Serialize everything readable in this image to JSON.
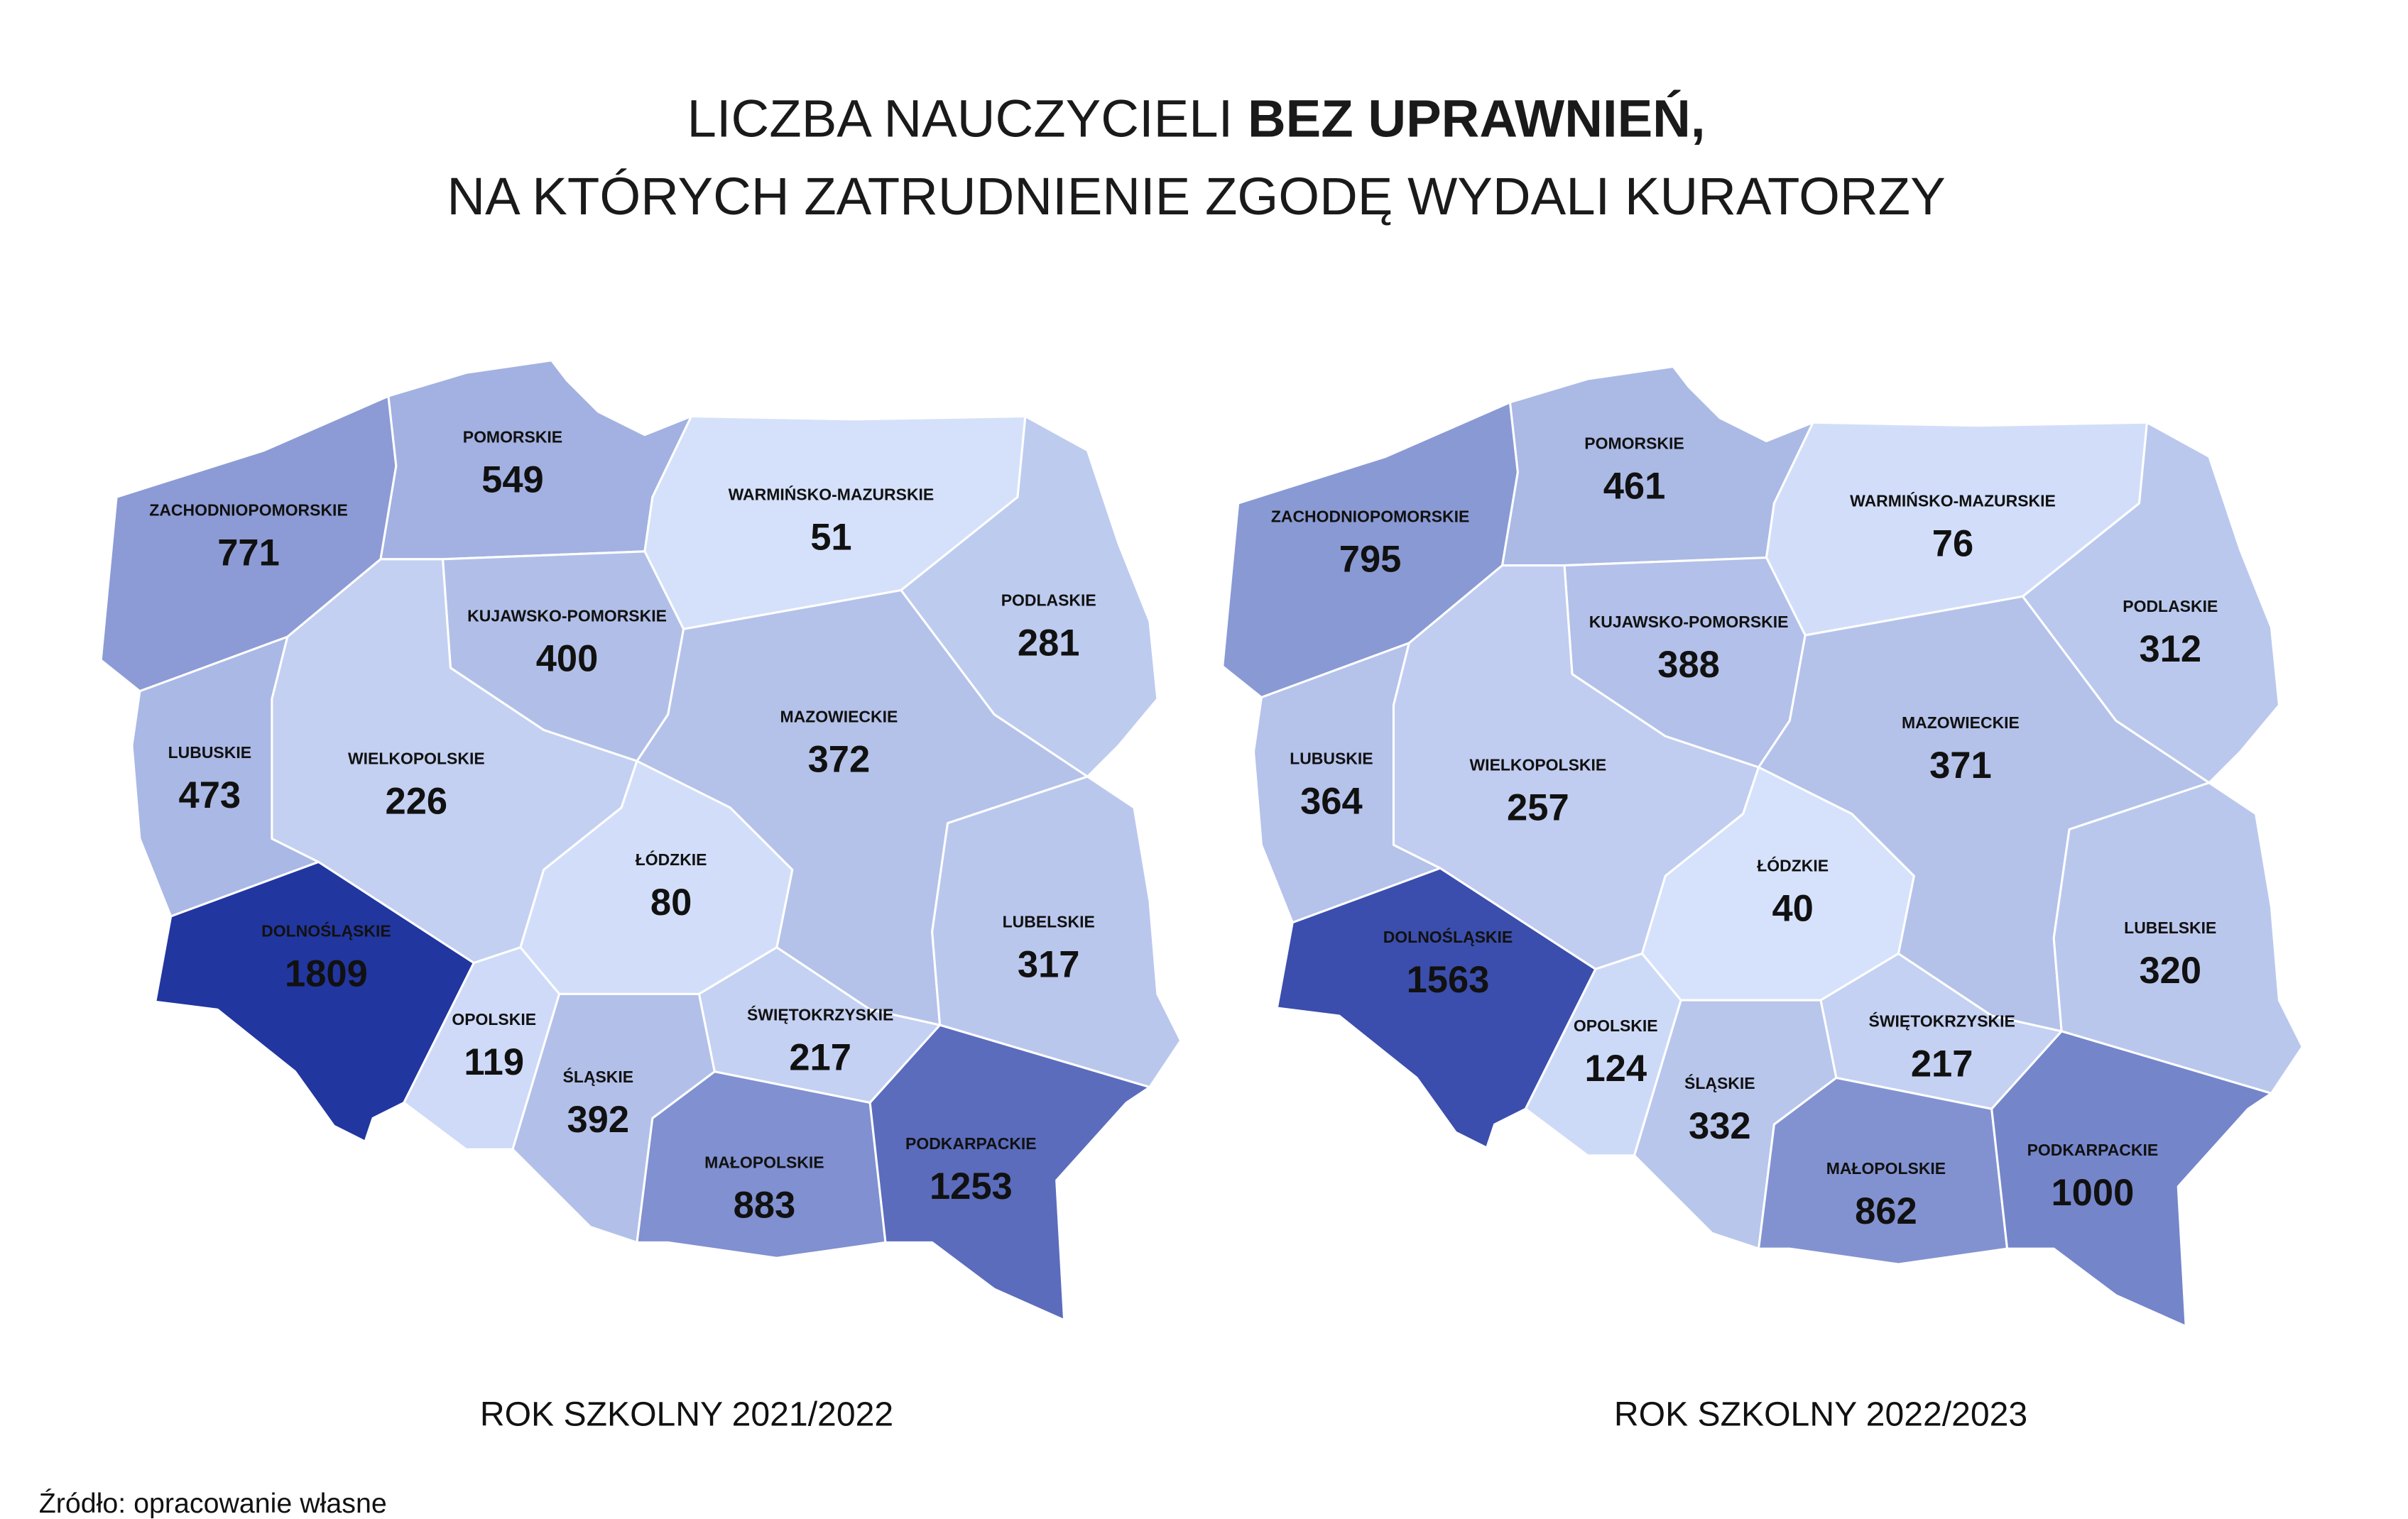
{
  "title": {
    "line1_light": "LICZBA NAUCZYCIELI",
    "line1_bold": "BEZ UPRAWNIEŃ,",
    "line2": "NA KTÓRYCH ZATRUDNIENIE ZGODĘ WYDALI KURATORZY"
  },
  "color_scale": {
    "low": "#d6e2fb",
    "high": "#2236a0"
  },
  "maps": [
    {
      "caption": "ROK SZKOLNY 2021/2022",
      "regions": [
        {
          "name": "ZACHODNIOPOMORSKIE",
          "value": 771
        },
        {
          "name": "POMORSKIE",
          "value": 549
        },
        {
          "name": "WARMIŃSKO-MAZURSKIE",
          "value": 51
        },
        {
          "name": "PODLASKIE",
          "value": 281
        },
        {
          "name": "KUJAWSKO-POMORSKIE",
          "value": 400
        },
        {
          "name": "MAZOWIECKIE",
          "value": 372
        },
        {
          "name": "WIELKOPOLSKIE",
          "value": 226
        },
        {
          "name": "LUBUSKIE",
          "value": 473
        },
        {
          "name": "ŁÓDZKIE",
          "value": 80
        },
        {
          "name": "DOLNOŚLĄSKIE",
          "value": 1809
        },
        {
          "name": "LUBELSKIE",
          "value": 317
        },
        {
          "name": "OPOLSKIE",
          "value": 119
        },
        {
          "name": "ŚLĄSKIE",
          "value": 392
        },
        {
          "name": "ŚWIĘTOKRZYSKIE",
          "value": 217
        },
        {
          "name": "MAŁOPOLSKIE",
          "value": 883
        },
        {
          "name": "PODKARPACKIE",
          "value": 1253
        }
      ]
    },
    {
      "caption": "ROK SZKOLNY 2022/2023",
      "regions": [
        {
          "name": "ZACHODNIOPOMORSKIE",
          "value": 795
        },
        {
          "name": "POMORSKIE",
          "value": 461
        },
        {
          "name": "WARMIŃSKO-MAZURSKIE",
          "value": 76
        },
        {
          "name": "PODLASKIE",
          "value": 312
        },
        {
          "name": "KUJAWSKO-POMORSKIE",
          "value": 388
        },
        {
          "name": "MAZOWIECKIE",
          "value": 371
        },
        {
          "name": "WIELKOPOLSKIE",
          "value": 257
        },
        {
          "name": "LUBUSKIE",
          "value": 364
        },
        {
          "name": "ŁÓDZKIE",
          "value": 40
        },
        {
          "name": "DOLNOŚLĄSKIE",
          "value": 1563
        },
        {
          "name": "LUBELSKIE",
          "value": 320
        },
        {
          "name": "OPOLSKIE",
          "value": 124
        },
        {
          "name": "ŚLĄSKIE",
          "value": 332
        },
        {
          "name": "ŚWIĘTOKRZYSKIE",
          "value": 217
        },
        {
          "name": "MAŁOPOLSKIE",
          "value": 862
        },
        {
          "name": "PODKARPACKIE",
          "value": 1000
        }
      ]
    }
  ],
  "source": "Źródło: opracowanie własne"
}
